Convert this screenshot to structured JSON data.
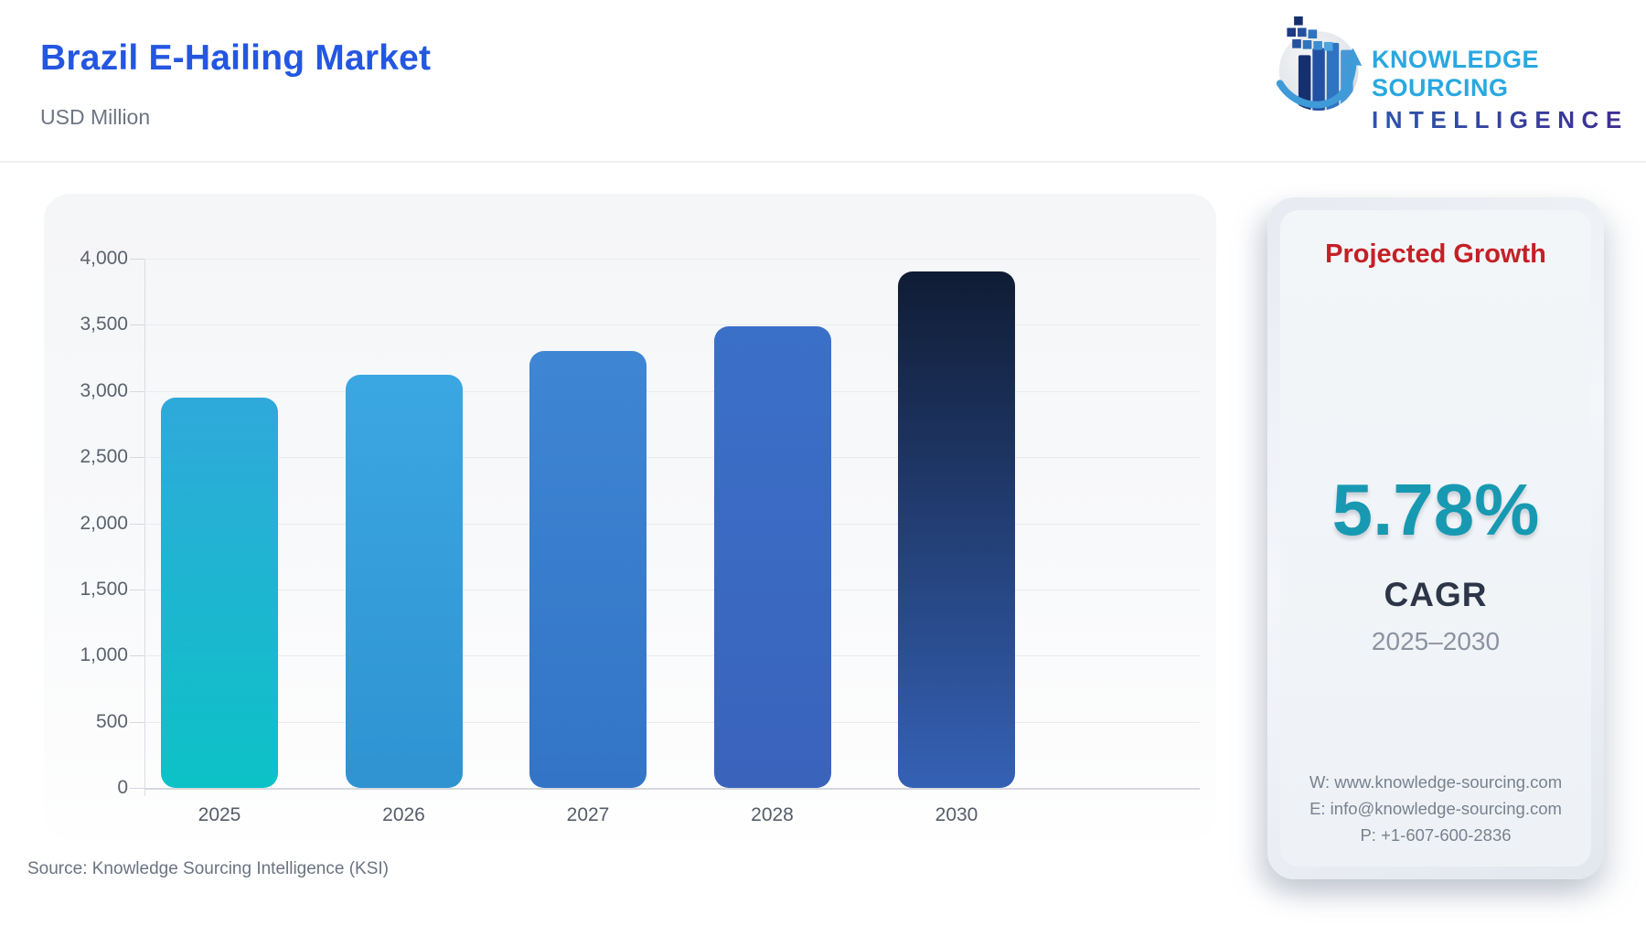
{
  "header": {
    "title": "Brazil E-Hailing Market",
    "subtitle": "USD Million"
  },
  "logo": {
    "line1": "KNOWLEDGE SOURCING",
    "line2": "INTELLIGENCE"
  },
  "chart_data": {
    "type": "bar",
    "title": "Brazil E-Hailing Market",
    "ylabel": "USD Million",
    "xlabel": "",
    "categories": [
      "2025",
      "2026",
      "2027",
      "2028",
      "2030"
    ],
    "values": [
      2950,
      3120,
      3300,
      3490,
      3900
    ],
    "ylim": [
      0,
      4000
    ],
    "ytick_interval": 500,
    "ytick_labels": [
      "4,000",
      "3,500",
      "3,000",
      "2,500",
      "2,000",
      "1,500",
      "1,000",
      "500",
      "0"
    ],
    "grid": true,
    "legend": false,
    "bar_gradients": [
      [
        "#2FA9DA",
        "#0CC2C7"
      ],
      [
        "#3BA7E2",
        "#2F93D2"
      ],
      [
        "#3E86D4",
        "#3374C6"
      ],
      [
        "#3B70C8",
        "#3A63BC"
      ],
      [
        "#101C34",
        "#3561B5"
      ]
    ]
  },
  "growth_panel": {
    "heading": "Projected Growth",
    "value": "5.78%",
    "metric": "CAGR",
    "period": "2025–2030",
    "contact": {
      "website": "W: www.knowledge-sourcing.com",
      "email": "E: info@knowledge-sourcing.com",
      "phone": "P: +1-607-600-2836"
    }
  },
  "footer": {
    "source": "Source: Knowledge Sourcing Intelligence (KSI)"
  },
  "colors": {
    "title_blue": "#2457E0",
    "heading_red": "#C42026",
    "value_teal": "#1899B2",
    "metric_dark": "#2D3648",
    "muted_gray": "#6D7582",
    "logo_light_blue": "#29A8E0",
    "logo_dark_blue": "#2F3D8F"
  }
}
